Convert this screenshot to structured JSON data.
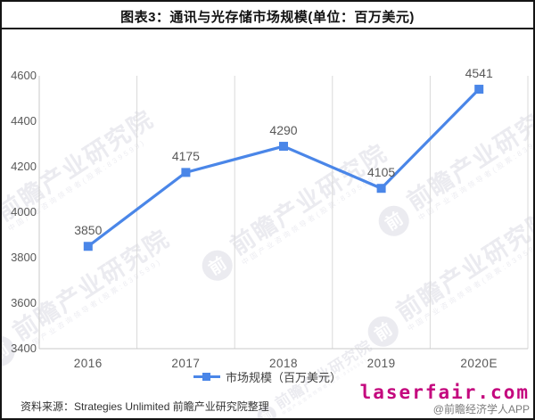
{
  "title": "图表3：通讯与光存储市场规模(单位：百万美元)",
  "chart_data": {
    "type": "line",
    "categories": [
      "2016",
      "2017",
      "2018",
      "2019",
      "2020E"
    ],
    "series": [
      {
        "name": "市场规模（百万美元）",
        "values": [
          3850,
          4175,
          4290,
          4105,
          4541
        ]
      }
    ],
    "data_labels": [
      "3850",
      "4175",
      "4290",
      "4105",
      "4541"
    ],
    "title": "图表3：通讯与光存储市场规模(单位：百万美元)",
    "xlabel": "",
    "ylabel": "",
    "ylim": [
      3400,
      4600
    ],
    "yticks": [
      4600,
      4400,
      4200,
      4000,
      3800,
      3600,
      3400
    ],
    "grid": "vertical-only",
    "legend_position": "bottom",
    "line_color": "#4a86e8",
    "marker": "square",
    "marker_color": "#4a86e8",
    "gridline_color": "#d9d9d9",
    "axis_color": "#c9c9c9"
  },
  "legend": {
    "label": "市场规模（百万美元）"
  },
  "footer": {
    "source": "资料来源：Strategies Unlimited 前瞻产业研究院整理",
    "site": "laserfair.com",
    "site_color": "#c4087e",
    "credit": "@前瞻经济学人APP"
  },
  "watermark": {
    "logo_glyph": "前",
    "text": "前瞻产业研究院",
    "subtext": "中国产业咨询领导者(股票:839599)"
  }
}
